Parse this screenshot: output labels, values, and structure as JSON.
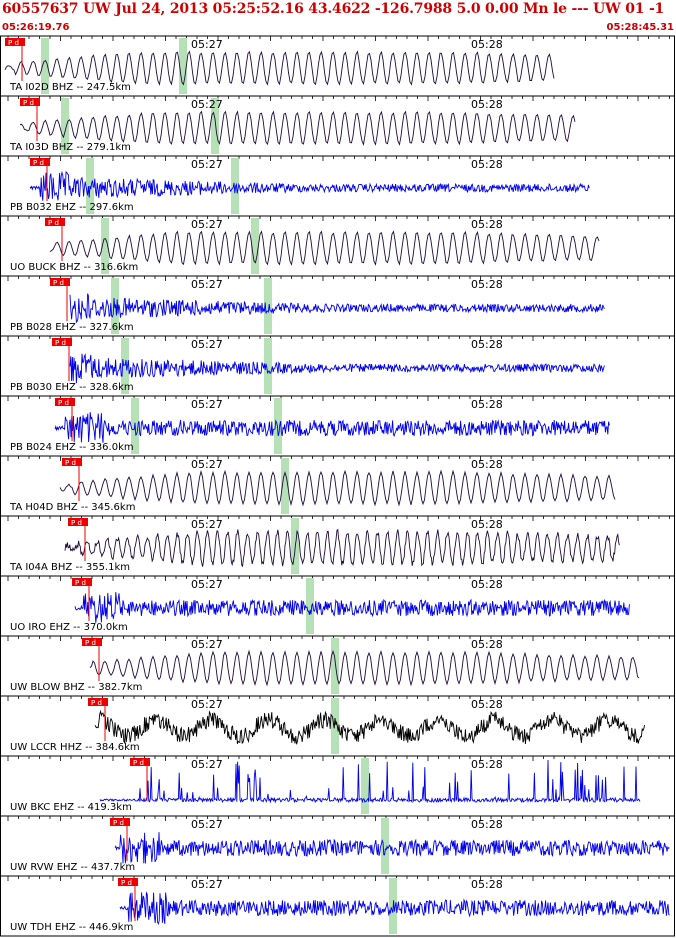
{
  "header": {
    "title": "60557637 UW Jul 24, 2013 05:25:52.16   43.4622 -126.7988  5.0 0.00 Mn le --- UW 01  -1",
    "time_start": "05:26:19.76",
    "time_end": "05:28:45.31"
  },
  "time_axis": {
    "minute_labels": [
      "05:27",
      "05:28"
    ]
  },
  "colors": {
    "frame": "#000000",
    "background": "#ffffff",
    "header_text": "#cc0000",
    "pick_box": "#ee0000",
    "s_marker": "#b6e0b6",
    "trace_dark": "#1e0a3c",
    "trace_blue": "#0000ee",
    "trace_black": "#000000"
  },
  "traces": [
    {
      "label": "TA I02D BHZ -- 247.5km",
      "pick": "P d",
      "trace_color": "#1e0a3c",
      "style": "long"
    },
    {
      "label": "TA I03D BHZ -- 279.1km",
      "pick": "P d",
      "trace_color": "#1e0a3c",
      "style": "long"
    },
    {
      "label": "PB B032 EHZ -- 297.6km",
      "pick": "P d",
      "trace_color": "#0000ee",
      "style": "short"
    },
    {
      "label": "UO BUCK BHZ -- 316.6km",
      "pick": "P d",
      "trace_color": "#1e0a3c",
      "style": "long"
    },
    {
      "label": "PB B028 EHZ -- 327.6km",
      "pick": "P d",
      "trace_color": "#0000ee",
      "style": "short"
    },
    {
      "label": "PB B030 EHZ -- 328.6km",
      "pick": "P d",
      "trace_color": "#0000ee",
      "style": "short"
    },
    {
      "label": "PB B024 EHZ -- 336.0km",
      "pick": "P d",
      "trace_color": "#0000ee",
      "style": "noisy"
    },
    {
      "label": "TA H04D BHZ -- 345.6km",
      "pick": "P d",
      "trace_color": "#1e0a3c",
      "style": "long"
    },
    {
      "label": "TA I04A BHZ -- 355.1km",
      "pick": "P d",
      "trace_color": "#1e0a3c",
      "style": "mixed"
    },
    {
      "label": "UO IRO EHZ -- 370.0km",
      "pick": "P d",
      "trace_color": "#0000ee",
      "style": "noisy"
    },
    {
      "label": "UW BLOW BHZ -- 382.7km",
      "pick": "P d",
      "trace_color": "#1e0a3c",
      "style": "long"
    },
    {
      "label": "UW LCCR HHZ -- 384.6km",
      "pick": "P d",
      "trace_color": "#000000",
      "style": "chaotic"
    },
    {
      "label": "UW BKC EHZ -- 419.3km",
      "pick": "P d",
      "trace_color": "#0000ee",
      "style": "spiky"
    },
    {
      "label": "UW RVW EHZ -- 437.7km",
      "pick": "P d",
      "trace_color": "#0000ee",
      "style": "noisy"
    },
    {
      "label": "UW TDH EHZ -- 446.9km",
      "pick": "P d",
      "trace_color": "#0000ee",
      "style": "noisy"
    }
  ]
}
